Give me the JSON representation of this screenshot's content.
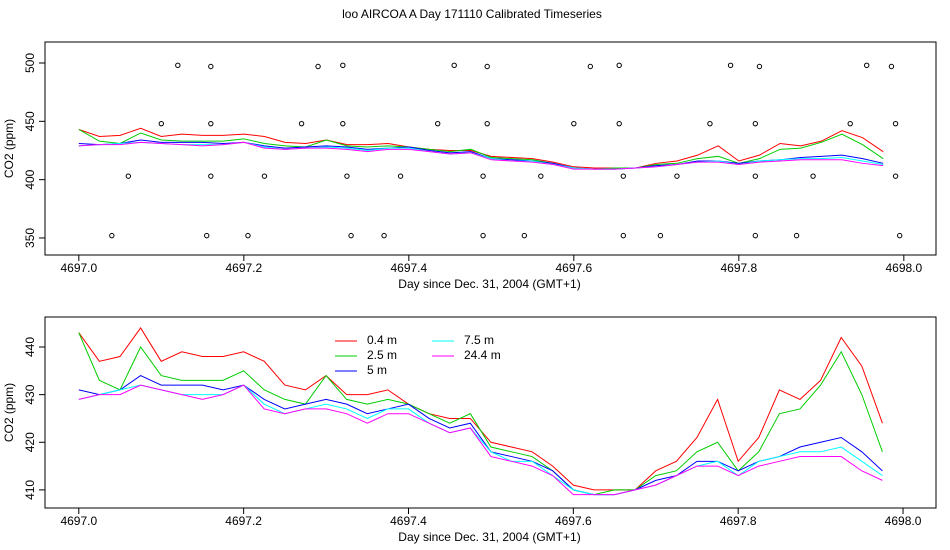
{
  "chart_data": [
    {
      "type": "line",
      "title": "loo AIRCOA A  Day 171110  Calibrated Timeseries",
      "x_label": "Day since Dec. 31, 2004 (GMT+1)",
      "y_label": "CO2 (ppm)",
      "xlim": [
        4696.959,
        4698.039
      ],
      "ylim": [
        335.4,
        518
      ],
      "xticks": [
        {
          "value": 4697.0,
          "label": "4697.0"
        },
        {
          "value": 4697.2,
          "label": "4697.2"
        },
        {
          "value": 4697.4,
          "label": "4697.4"
        },
        {
          "value": 4697.6,
          "label": "4697.6"
        },
        {
          "value": 4697.8,
          "label": "4697.8"
        },
        {
          "value": 4698.0,
          "label": "4698.0"
        }
      ],
      "yticks": [
        350,
        400,
        450,
        500
      ],
      "x": [
        4697.0,
        4697.025,
        4697.05,
        4697.075,
        4697.1,
        4697.125,
        4697.15,
        4697.175,
        4697.2,
        4697.225,
        4697.25,
        4697.275,
        4697.3,
        4697.325,
        4697.35,
        4697.375,
        4697.4,
        4697.425,
        4697.45,
        4697.475,
        4697.5,
        4697.525,
        4697.55,
        4697.575,
        4697.6,
        4697.625,
        4697.65,
        4697.675,
        4697.7,
        4697.725,
        4697.75,
        4697.775,
        4697.8,
        4697.825,
        4697.85,
        4697.875,
        4697.9,
        4697.925,
        4697.95,
        4697.975
      ],
      "series": [
        {
          "color": "#ff0000",
          "values": [
            443,
            437,
            438,
            444,
            437,
            439,
            438,
            438,
            439,
            437,
            432,
            431,
            434,
            430,
            430,
            431,
            428,
            426,
            425,
            425,
            420,
            419,
            418,
            415,
            411,
            410,
            410,
            410,
            414,
            416,
            421,
            429,
            416,
            421,
            431,
            429,
            433,
            442,
            436,
            424
          ]
        },
        {
          "color": "#00cd00",
          "values": [
            443,
            433,
            431,
            440,
            434,
            433,
            433,
            433,
            435,
            431,
            429,
            428,
            434,
            429,
            428,
            429,
            428,
            426,
            424,
            426,
            419,
            418,
            417,
            414,
            410,
            409,
            410,
            410,
            413,
            414,
            418,
            420,
            414,
            418,
            426,
            427,
            432,
            439,
            430,
            418
          ]
        },
        {
          "color": "#0000ff",
          "values": [
            431,
            430,
            431,
            434,
            432,
            432,
            432,
            431,
            432,
            429,
            427,
            428,
            429,
            428,
            426,
            427,
            428,
            425,
            423,
            424,
            418,
            417,
            416,
            414,
            410,
            409,
            409,
            410,
            412,
            413,
            416,
            416,
            414,
            416,
            417,
            419,
            420,
            421,
            418,
            414
          ]
        },
        {
          "color": "#00ffff",
          "values": [
            429,
            430,
            431,
            432,
            431,
            430,
            430,
            430,
            432,
            428,
            426,
            427,
            428,
            427,
            425,
            427,
            427,
            424,
            422,
            423,
            418,
            416,
            416,
            413,
            410,
            409,
            409,
            410,
            411,
            413,
            415,
            416,
            413,
            416,
            417,
            418,
            418,
            419,
            416,
            413
          ]
        },
        {
          "color": "#ff00ff",
          "values": [
            429,
            430,
            430,
            432,
            431,
            430,
            429,
            430,
            432,
            427,
            426,
            427,
            427,
            426,
            424,
            426,
            426,
            424,
            422,
            423,
            417,
            416,
            415,
            413,
            409,
            409,
            409,
            410,
            411,
            413,
            415,
            415,
            413,
            415,
            416,
            417,
            417,
            417,
            414,
            412
          ]
        }
      ],
      "points": {
        "color": "#000000",
        "x": [
          4697.04,
          4697.06,
          4697.1,
          4697.12,
          4697.155,
          4697.16,
          4697.16,
          4697.16,
          4697.205,
          4697.225,
          4697.27,
          4697.29,
          4697.32,
          4697.32,
          4697.325,
          4697.33,
          4697.37,
          4697.39,
          4697.435,
          4697.455,
          4697.49,
          4697.49,
          4697.495,
          4697.495,
          4697.54,
          4697.56,
          4697.6,
          4697.62,
          4697.655,
          4697.655,
          4697.66,
          4697.66,
          4697.705,
          4697.725,
          4697.765,
          4697.79,
          4697.82,
          4697.82,
          4697.82,
          4697.825,
          4697.87,
          4697.89,
          4697.935,
          4697.955,
          4697.985,
          4697.99,
          4697.99,
          4697.995
        ],
        "values": [
          352,
          403,
          448,
          498,
          352,
          403,
          448,
          497,
          352,
          403,
          448,
          497,
          498,
          448,
          403,
          352,
          352,
          403,
          448,
          498,
          352,
          403,
          448,
          497,
          352,
          403,
          448,
          497,
          498,
          448,
          403,
          352,
          352,
          403,
          448,
          498,
          352,
          403,
          448,
          497,
          352,
          403,
          448,
          498,
          497,
          448,
          403,
          352
        ]
      }
    },
    {
      "type": "line",
      "x_label": "Day since Dec. 31, 2004 (GMT+1)",
      "y_label": "CO2 (ppm)",
      "xlim": [
        4696.959,
        4698.04
      ],
      "ylim": [
        406.2,
        446.3
      ],
      "xticks": [
        {
          "value": 4697.0,
          "label": "4697.0"
        },
        {
          "value": 4697.2,
          "label": "4697.2"
        },
        {
          "value": 4697.4,
          "label": "4697.4"
        },
        {
          "value": 4697.6,
          "label": "4697.6"
        },
        {
          "value": 4697.8,
          "label": "4697.8"
        },
        {
          "value": 4698.0,
          "label": "4698.0"
        }
      ],
      "yticks": [
        410,
        420,
        430,
        440
      ],
      "legend": "top-left",
      "x": [
        4697.0,
        4697.025,
        4697.05,
        4697.075,
        4697.1,
        4697.125,
        4697.15,
        4697.175,
        4697.2,
        4697.225,
        4697.25,
        4697.275,
        4697.3,
        4697.325,
        4697.35,
        4697.375,
        4697.4,
        4697.425,
        4697.45,
        4697.475,
        4697.5,
        4697.525,
        4697.55,
        4697.575,
        4697.6,
        4697.625,
        4697.65,
        4697.675,
        4697.7,
        4697.725,
        4697.75,
        4697.775,
        4697.8,
        4697.825,
        4697.85,
        4697.875,
        4697.9,
        4697.925,
        4697.95,
        4697.975
      ],
      "series": [
        {
          "name": "0.4 m",
          "color": "#ff0000",
          "values": [
            443,
            437,
            438,
            444,
            437,
            439,
            438,
            438,
            439,
            437,
            432,
            431,
            434,
            430,
            430,
            431,
            428,
            426,
            425,
            425,
            420,
            419,
            418,
            415,
            411,
            410,
            410,
            410,
            414,
            416,
            421,
            429,
            416,
            421,
            431,
            429,
            433,
            442,
            436,
            424
          ]
        },
        {
          "name": "2.5 m",
          "color": "#00cd00",
          "values": [
            443,
            433,
            431,
            440,
            434,
            433,
            433,
            433,
            435,
            431,
            429,
            428,
            434,
            429,
            428,
            429,
            428,
            426,
            424,
            426,
            419,
            418,
            417,
            414,
            410,
            409,
            410,
            410,
            413,
            414,
            418,
            420,
            414,
            418,
            426,
            427,
            432,
            439,
            430,
            418
          ]
        },
        {
          "name": "5 m",
          "color": "#0000ff",
          "values": [
            431,
            430,
            431,
            434,
            432,
            432,
            432,
            431,
            432,
            429,
            427,
            428,
            429,
            428,
            426,
            427,
            428,
            425,
            423,
            424,
            418,
            417,
            416,
            414,
            410,
            409,
            409,
            410,
            412,
            413,
            416,
            416,
            414,
            416,
            417,
            419,
            420,
            421,
            418,
            414
          ]
        },
        {
          "name": "7.5 m",
          "color": "#00ffff",
          "values": [
            429,
            430,
            431,
            432,
            431,
            430,
            430,
            430,
            432,
            428,
            426,
            427,
            428,
            427,
            425,
            427,
            427,
            424,
            422,
            423,
            418,
            416,
            416,
            413,
            410,
            409,
            409,
            410,
            411,
            413,
            415,
            416,
            413,
            416,
            417,
            418,
            418,
            419,
            416,
            413
          ]
        },
        {
          "name": "24.4 m",
          "color": "#ff00ff",
          "values": [
            429,
            430,
            430,
            432,
            431,
            430,
            429,
            430,
            432,
            427,
            426,
            427,
            427,
            426,
            424,
            426,
            426,
            424,
            422,
            423,
            417,
            416,
            415,
            413,
            409,
            409,
            409,
            410,
            411,
            413,
            415,
            415,
            413,
            415,
            416,
            417,
            417,
            417,
            414,
            412
          ]
        }
      ]
    }
  ]
}
